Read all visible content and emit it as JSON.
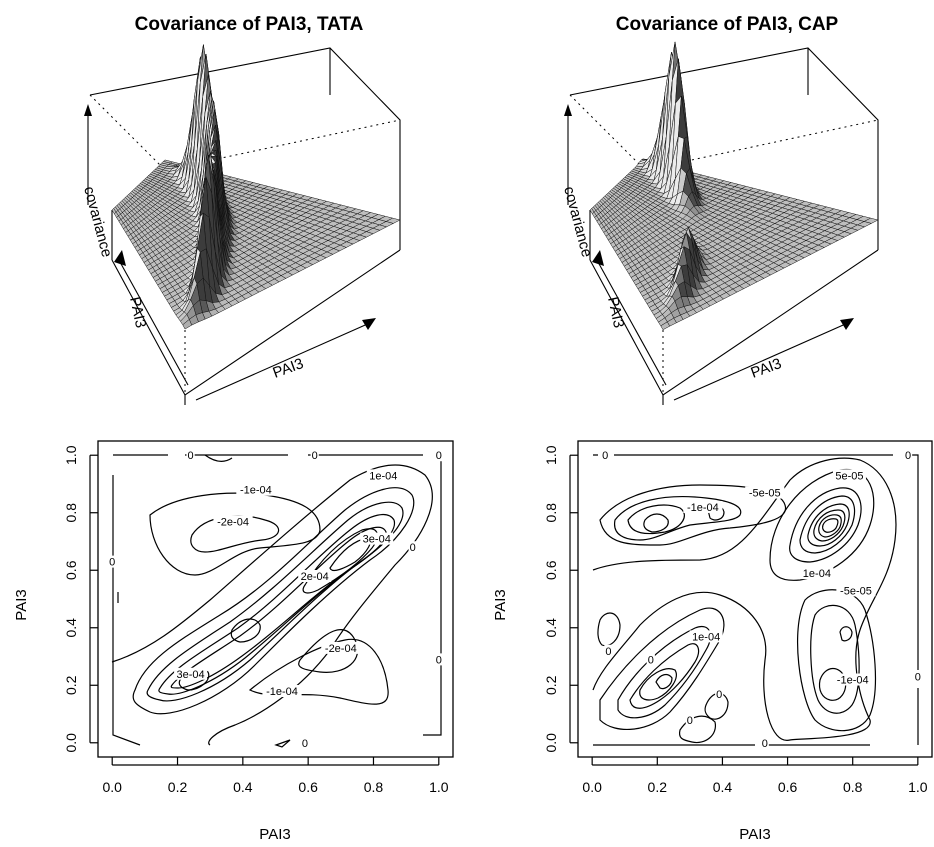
{
  "chart_data": [
    {
      "type": "surface",
      "title": "Covariance of PAI3, TATA",
      "xlabel": "PAI3",
      "ylabel": "PAI3",
      "zlabel": "covariance",
      "peaks": [
        {
          "x": 0.72,
          "y": 0.72,
          "height": 1.0
        },
        {
          "x": 0.55,
          "y": 0.55,
          "height": 0.72
        },
        {
          "x": 0.38,
          "y": 0.4,
          "height": 0.58
        },
        {
          "x": 0.22,
          "y": 0.22,
          "height": 0.85
        }
      ]
    },
    {
      "type": "surface",
      "title": "Covariance of PAI3, CAP",
      "xlabel": "PAI3",
      "ylabel": "PAI3",
      "zlabel": "covariance",
      "peaks": [
        {
          "x": 0.78,
          "y": 0.78,
          "height": 1.0
        },
        {
          "x": 0.23,
          "y": 0.23,
          "height": 0.35
        }
      ]
    },
    {
      "type": "contour",
      "xlabel": "PAI3",
      "ylabel": "PAI3",
      "xlim": [
        0,
        1
      ],
      "ylim": [
        0,
        1
      ],
      "xticks": [
        "0.0",
        "0.2",
        "0.4",
        "0.6",
        "0.8",
        "1.0"
      ],
      "yticks": [
        "0.0",
        "0.2",
        "0.4",
        "0.6",
        "0.8",
        "1.0"
      ],
      "contour_labels": [
        {
          "text": "0",
          "x": 0.24,
          "y": 1.0
        },
        {
          "text": "0",
          "x": 0.62,
          "y": 1.0
        },
        {
          "text": "0",
          "x": 1.0,
          "y": 1.0
        },
        {
          "text": "1e-04",
          "x": 0.83,
          "y": 0.93
        },
        {
          "text": "-1e-04",
          "x": 0.44,
          "y": 0.88
        },
        {
          "text": "-2e-04",
          "x": 0.37,
          "y": 0.77
        },
        {
          "text": "3e-04",
          "x": 0.81,
          "y": 0.71
        },
        {
          "text": "0",
          "x": 0.92,
          "y": 0.68
        },
        {
          "text": "2e-04",
          "x": 0.62,
          "y": 0.58
        },
        {
          "text": "0",
          "x": 0.0,
          "y": 0.63
        },
        {
          "text": "-2e-04",
          "x": 0.7,
          "y": 0.33
        },
        {
          "text": "3e-04",
          "x": 0.24,
          "y": 0.24
        },
        {
          "text": "-1e-04",
          "x": 0.52,
          "y": 0.18
        },
        {
          "text": "0",
          "x": 1.0,
          "y": 0.29
        },
        {
          "text": "0",
          "x": 0.59,
          "y": 0.0
        }
      ]
    },
    {
      "type": "contour",
      "xlabel": "PAI3",
      "ylabel": "PAI3",
      "xlim": [
        0,
        1
      ],
      "ylim": [
        0,
        1
      ],
      "xticks": [
        "0.0",
        "0.2",
        "0.4",
        "0.6",
        "0.8",
        "1.0"
      ],
      "yticks": [
        "0.0",
        "0.2",
        "0.4",
        "0.6",
        "0.8",
        "1.0"
      ],
      "contour_labels": [
        {
          "text": "0",
          "x": 0.04,
          "y": 1.0
        },
        {
          "text": "0",
          "x": 0.97,
          "y": 1.0
        },
        {
          "text": "5e-05",
          "x": 0.79,
          "y": 0.93
        },
        {
          "text": "-5e-05",
          "x": 0.53,
          "y": 0.87
        },
        {
          "text": "-1e-04",
          "x": 0.34,
          "y": 0.82
        },
        {
          "text": "1e-04",
          "x": 0.69,
          "y": 0.59
        },
        {
          "text": "-5e-05",
          "x": 0.81,
          "y": 0.53
        },
        {
          "text": "1e-04",
          "x": 0.35,
          "y": 0.37
        },
        {
          "text": "0",
          "x": 0.05,
          "y": 0.32
        },
        {
          "text": "0",
          "x": 0.18,
          "y": 0.29
        },
        {
          "text": "0",
          "x": 0.39,
          "y": 0.17
        },
        {
          "text": "0",
          "x": 0.3,
          "y": 0.08
        },
        {
          "text": "-1e-04",
          "x": 0.8,
          "y": 0.22
        },
        {
          "text": "0",
          "x": 1.0,
          "y": 0.23
        },
        {
          "text": "0",
          "x": 0.53,
          "y": 0.0
        }
      ]
    }
  ]
}
